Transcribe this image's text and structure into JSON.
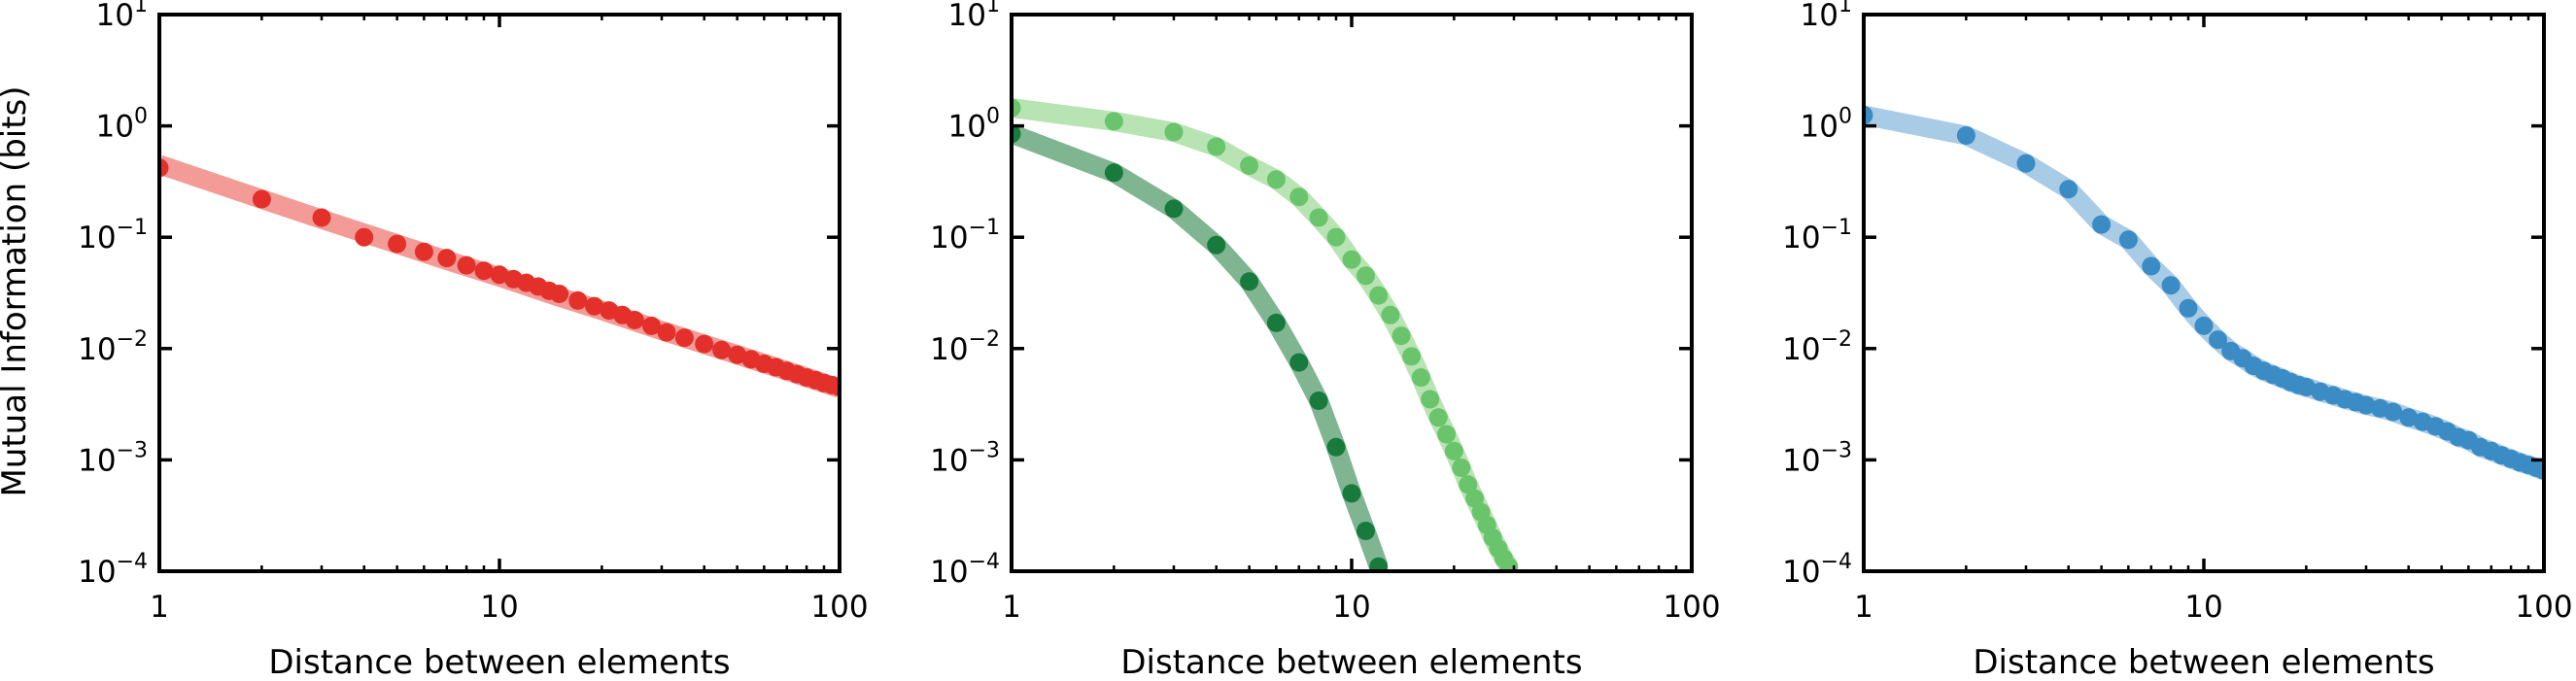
{
  "figure": {
    "ylabel": "Mutual Information (bits)"
  },
  "chart_data": [
    {
      "type": "scatter",
      "title": "",
      "xlabel": "Distance between elements",
      "ylabel": "Mutual Information (bits)",
      "xscale": "log",
      "yscale": "log",
      "xlim": [
        1,
        100
      ],
      "ylim": [
        0.0001,
        10
      ],
      "x_ticks": [
        1,
        10,
        100
      ],
      "x_tick_labels": [
        "1",
        "10",
        "100"
      ],
      "y_ticks": [
        0.0001,
        0.001,
        0.01,
        0.1,
        1,
        10
      ],
      "y_tick_labels": [
        {
          "base": "10",
          "exp": "−4"
        },
        {
          "base": "10",
          "exp": "−3"
        },
        {
          "base": "10",
          "exp": "−2"
        },
        {
          "base": "10",
          "exp": "−1"
        },
        {
          "base": "10",
          "exp": "0"
        },
        {
          "base": "10",
          "exp": "1"
        }
      ],
      "grid": false,
      "series": [
        {
          "color": "#e3302a",
          "fit_color": "#f29b97",
          "x": [
            1,
            2,
            3,
            4,
            5,
            6,
            7,
            8,
            9,
            10,
            11,
            12,
            13,
            14,
            15,
            17,
            19,
            21,
            23,
            25,
            28,
            31,
            35,
            40,
            45,
            50,
            55,
            60,
            65,
            70,
            75,
            80,
            85,
            90,
            95,
            100
          ],
          "y": [
            0.42,
            0.22,
            0.15,
            0.1,
            0.087,
            0.074,
            0.065,
            0.056,
            0.05,
            0.046,
            0.042,
            0.039,
            0.036,
            0.033,
            0.031,
            0.027,
            0.024,
            0.022,
            0.02,
            0.018,
            0.016,
            0.014,
            0.0125,
            0.011,
            0.0097,
            0.0088,
            0.008,
            0.0073,
            0.0068,
            0.0063,
            0.0059,
            0.0055,
            0.0052,
            0.0049,
            0.0047,
            0.0045
          ],
          "fit": {
            "x": [
              1,
              2,
              3,
              5,
              7,
              10,
              15,
              20,
              30,
              50,
              70,
              100
            ],
            "y": [
              0.45,
              0.22,
              0.145,
              0.087,
              0.062,
              0.044,
              0.029,
              0.022,
              0.0145,
              0.0088,
              0.0063,
              0.0044
            ]
          }
        }
      ]
    },
    {
      "type": "scatter",
      "title": "",
      "xlabel": "Distance between elements",
      "ylabel": "",
      "xscale": "log",
      "yscale": "log",
      "xlim": [
        1,
        100
      ],
      "ylim": [
        0.0001,
        10
      ],
      "x_ticks": [
        1,
        10,
        100
      ],
      "x_tick_labels": [
        "1",
        "10",
        "100"
      ],
      "y_ticks": [
        0.0001,
        0.001,
        0.01,
        0.1,
        1,
        10
      ],
      "y_tick_labels": [
        {
          "base": "10",
          "exp": "−4"
        },
        {
          "base": "10",
          "exp": "−3"
        },
        {
          "base": "10",
          "exp": "−2"
        },
        {
          "base": "10",
          "exp": "−1"
        },
        {
          "base": "10",
          "exp": "0"
        },
        {
          "base": "10",
          "exp": "1"
        }
      ],
      "grid": false,
      "series": [
        {
          "color": "#6ac46b",
          "fit_color": "#b8e3b3",
          "x": [
            1,
            2,
            3,
            4,
            5,
            6,
            7,
            8,
            9,
            10,
            11,
            12,
            13,
            14,
            15,
            16,
            17,
            18,
            19,
            20,
            21,
            22,
            23,
            24,
            25,
            26,
            27,
            28,
            29
          ],
          "y": [
            1.45,
            1.1,
            0.88,
            0.65,
            0.44,
            0.33,
            0.23,
            0.15,
            0.1,
            0.063,
            0.045,
            0.03,
            0.02,
            0.013,
            0.0085,
            0.0055,
            0.0035,
            0.0024,
            0.0017,
            0.0012,
            0.00085,
            0.0006,
            0.00045,
            0.00034,
            0.00026,
            0.0002,
            0.00016,
            0.00013,
            0.00011
          ]
        },
        {
          "color": "#187a3c",
          "fit_color": "#7fb591",
          "x": [
            1,
            2,
            3,
            4,
            5,
            6,
            7,
            8,
            9,
            10,
            11,
            12
          ],
          "y": [
            0.85,
            0.38,
            0.18,
            0.085,
            0.04,
            0.017,
            0.0075,
            0.0034,
            0.0013,
            0.0005,
            0.00023,
            0.00011
          ]
        }
      ]
    },
    {
      "type": "scatter",
      "title": "",
      "xlabel": "Distance between elements",
      "ylabel": "",
      "xscale": "log",
      "yscale": "log",
      "xlim": [
        1,
        100
      ],
      "ylim": [
        0.0001,
        10
      ],
      "x_ticks": [
        1,
        10,
        100
      ],
      "x_tick_labels": [
        "1",
        "10",
        "100"
      ],
      "y_ticks": [
        0.0001,
        0.001,
        0.01,
        0.1,
        1,
        10
      ],
      "y_tick_labels": [
        {
          "base": "10",
          "exp": "−4"
        },
        {
          "base": "10",
          "exp": "−3"
        },
        {
          "base": "10",
          "exp": "−2"
        },
        {
          "base": "10",
          "exp": "−1"
        },
        {
          "base": "10",
          "exp": "0"
        },
        {
          "base": "10",
          "exp": "1"
        }
      ],
      "grid": false,
      "series": [
        {
          "color": "#3b8bc4",
          "fit_color": "#a8cbe6",
          "x": [
            1,
            2,
            3,
            4,
            5,
            6,
            7,
            8,
            9,
            10,
            11,
            12,
            13,
            14,
            15,
            16,
            17,
            18,
            19,
            20,
            22,
            24,
            26,
            28,
            30,
            33,
            36,
            40,
            44,
            48,
            52,
            56,
            60,
            65,
            70,
            75,
            80,
            85,
            90,
            95,
            100
          ],
          "y": [
            1.25,
            0.82,
            0.46,
            0.27,
            0.13,
            0.095,
            0.055,
            0.037,
            0.023,
            0.016,
            0.012,
            0.0095,
            0.0082,
            0.007,
            0.0063,
            0.0058,
            0.0054,
            0.005,
            0.0047,
            0.0045,
            0.0041,
            0.0038,
            0.0035,
            0.0033,
            0.0031,
            0.0029,
            0.0027,
            0.0024,
            0.0022,
            0.002,
            0.0018,
            0.0016,
            0.0015,
            0.0013,
            0.0012,
            0.0011,
            0.00102,
            0.00095,
            0.0009,
            0.00085,
            0.0008
          ]
        }
      ]
    }
  ]
}
